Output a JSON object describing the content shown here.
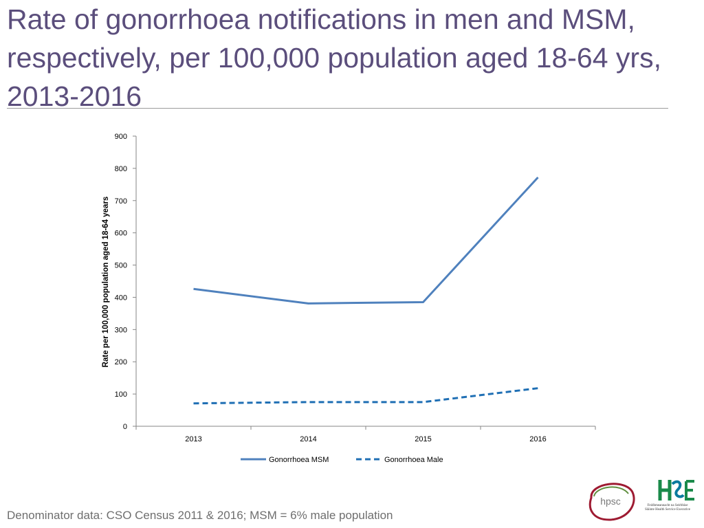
{
  "slide": {
    "title": "Rate of gonorrhoea notifications in men and MSM, respectively, per 100,000 population aged 18-64 yrs, 2013-2016",
    "footnote": "Denominator data: CSO Census 2011 & 2016; MSM = 6% male population"
  },
  "logos": {
    "hpsc_text": "hpsc",
    "hse_caption": "Feidhmeannacht na Seirbhíse Sláinte Health Service Executive"
  },
  "chart_data": {
    "type": "line",
    "title": "",
    "xlabel": "",
    "ylabel": "Rate per 100,000 population aged 18-64 years",
    "categories": [
      "2013",
      "2014",
      "2015",
      "2016"
    ],
    "ylim": [
      0,
      900
    ],
    "yticks": [
      0,
      100,
      200,
      300,
      400,
      500,
      600,
      700,
      800,
      900
    ],
    "grid": false,
    "legend_position": "bottom",
    "series": [
      {
        "name": "Gonorrhoea MSM",
        "values": [
          426,
          381,
          385,
          772
        ],
        "color": "#4f81bd",
        "dash": "solid"
      },
      {
        "name": "Gonorrhoea Male",
        "values": [
          71,
          75,
          75,
          118
        ],
        "color": "#1f6fb4",
        "dash": "dashed"
      }
    ]
  }
}
